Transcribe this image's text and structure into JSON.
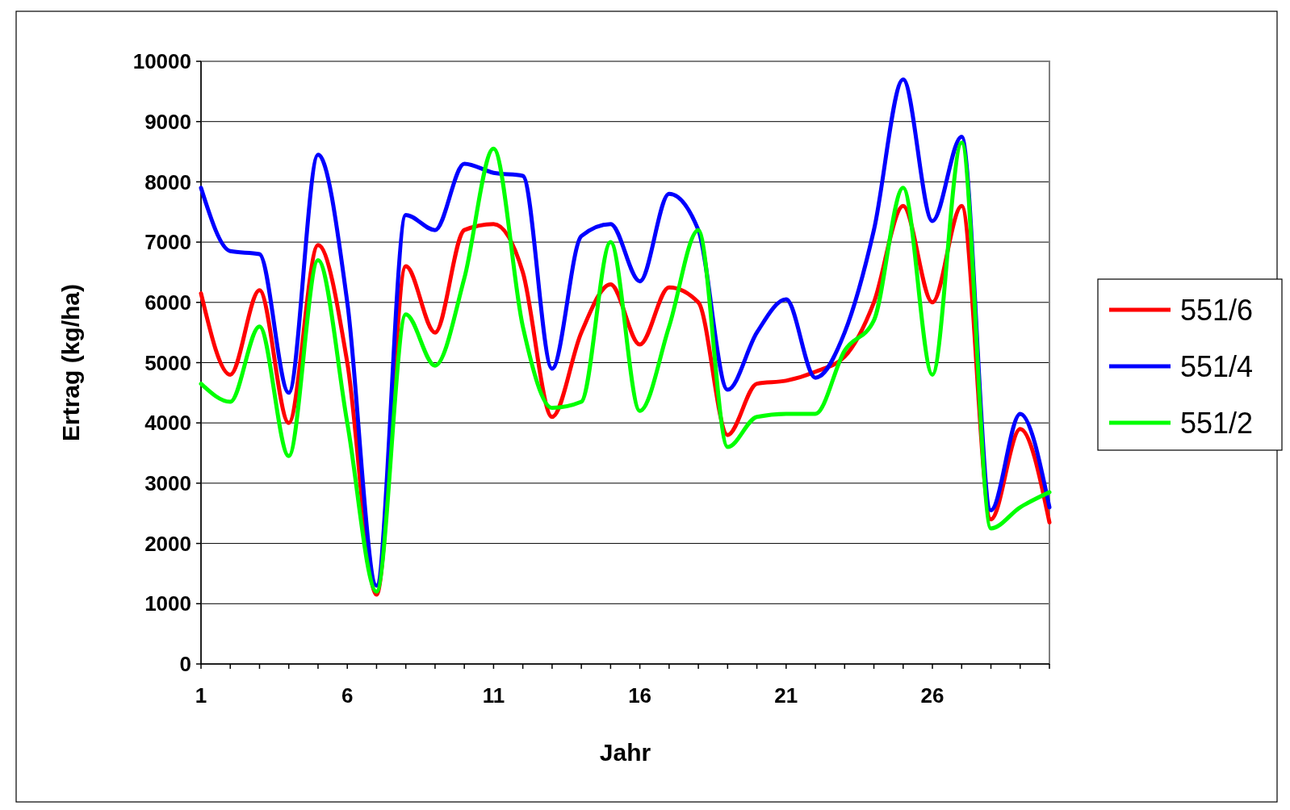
{
  "chart_data": {
    "type": "line",
    "xlabel": "Jahr",
    "ylabel": "Ertrag (kg/ha)",
    "x": [
      1,
      2,
      3,
      4,
      5,
      6,
      7,
      8,
      9,
      10,
      11,
      12,
      13,
      14,
      15,
      16,
      17,
      18,
      19,
      20,
      21,
      22,
      23,
      24,
      25,
      26,
      27,
      28,
      29,
      30
    ],
    "xlim": [
      1,
      30
    ],
    "xticks": [
      1,
      6,
      11,
      16,
      21,
      26
    ],
    "ylim": [
      0,
      10000
    ],
    "yticks": [
      0,
      1000,
      2000,
      3000,
      4000,
      5000,
      6000,
      7000,
      8000,
      9000,
      10000
    ],
    "grid": "y",
    "legend": "right",
    "marker": "none",
    "line_style": "solid",
    "series": [
      {
        "name": "551/6",
        "color": "#ff0000",
        "values": [
          6150,
          4800,
          6200,
          4000,
          6950,
          5000,
          1150,
          6600,
          5500,
          7200,
          7300,
          6500,
          4100,
          5500,
          6300,
          5300,
          6250,
          6000,
          3800,
          4650,
          4700,
          4850,
          5100,
          6000,
          7600,
          6000,
          7600,
          2400,
          3900,
          2350
        ]
      },
      {
        "name": "551/4",
        "color": "#0000ff",
        "values": [
          7900,
          6850,
          6800,
          4500,
          8450,
          6000,
          1300,
          7450,
          7200,
          8300,
          8150,
          8100,
          4900,
          7100,
          7300,
          6350,
          7800,
          7200,
          4550,
          5500,
          6050,
          4750,
          5500,
          7200,
          9700,
          7350,
          8750,
          2550,
          4150,
          2600
        ]
      },
      {
        "name": "551/2",
        "color": "#00ff00",
        "values": [
          4650,
          4350,
          5600,
          3450,
          6700,
          4000,
          1200,
          5800,
          4950,
          6400,
          8550,
          5600,
          4250,
          4350,
          7000,
          4200,
          5600,
          7200,
          3600,
          4100,
          4150,
          4150,
          5200,
          5700,
          7900,
          4800,
          8650,
          2250,
          2600,
          2850
        ]
      }
    ]
  }
}
